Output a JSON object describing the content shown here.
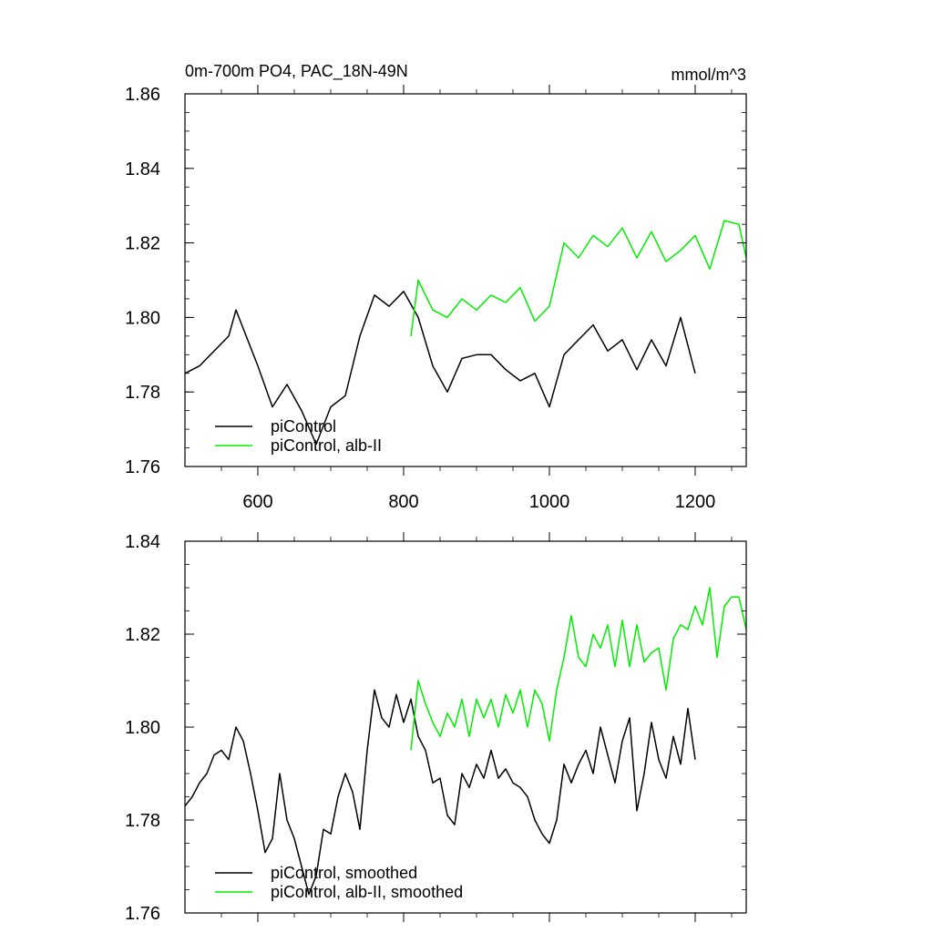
{
  "title": "0m-700m PO4, PAC_18N-49N",
  "units": "mmol/m^3",
  "colors": {
    "control": "#000000",
    "experiment": "#00ee00"
  },
  "chart_data": [
    {
      "type": "line",
      "xlim": [
        500,
        1270
      ],
      "ylim": [
        1.76,
        1.86
      ],
      "xticks": [
        600,
        800,
        1000,
        1200
      ],
      "xtick_labels": [
        "600",
        "800",
        "1000",
        "1200"
      ],
      "yticks": [
        1.76,
        1.78,
        1.8,
        1.82,
        1.84,
        1.86
      ],
      "ytick_labels": [
        "1.76",
        "1.78",
        "1.80",
        "1.82",
        "1.84",
        "1.86"
      ],
      "legend_position": "bottom-left",
      "series": [
        {
          "name": "piControl",
          "color": "#000000",
          "x": [
            500,
            520,
            540,
            560,
            570,
            580,
            600,
            620,
            640,
            660,
            680,
            700,
            720,
            740,
            760,
            780,
            800,
            820,
            840,
            860,
            880,
            900,
            920,
            940,
            960,
            980,
            1000,
            1020,
            1040,
            1060,
            1080,
            1100,
            1120,
            1140,
            1160,
            1180,
            1200
          ],
          "y": [
            1.785,
            1.787,
            1.791,
            1.795,
            1.802,
            1.797,
            1.787,
            1.776,
            1.782,
            1.775,
            1.766,
            1.776,
            1.779,
            1.795,
            1.806,
            1.803,
            1.807,
            1.8,
            1.787,
            1.78,
            1.789,
            1.79,
            1.79,
            1.786,
            1.783,
            1.785,
            1.776,
            1.79,
            1.794,
            1.798,
            1.791,
            1.794,
            1.786,
            1.794,
            1.787,
            1.8,
            1.785
          ]
        },
        {
          "name": "piControl, alb-II",
          "color": "#00ee00",
          "x": [
            810,
            820,
            840,
            860,
            880,
            900,
            920,
            940,
            960,
            980,
            1000,
            1020,
            1040,
            1060,
            1080,
            1100,
            1120,
            1140,
            1160,
            1180,
            1200,
            1220,
            1240,
            1260,
            1270
          ],
          "y": [
            1.795,
            1.81,
            1.802,
            1.8,
            1.805,
            1.802,
            1.806,
            1.804,
            1.808,
            1.799,
            1.803,
            1.82,
            1.816,
            1.822,
            1.819,
            1.824,
            1.816,
            1.823,
            1.815,
            1.818,
            1.822,
            1.813,
            1.826,
            1.825,
            1.816
          ]
        }
      ]
    },
    {
      "type": "line",
      "xlim": [
        500,
        1270
      ],
      "ylim": [
        1.76,
        1.84
      ],
      "xticks": [
        600,
        800,
        1000,
        1200
      ],
      "yticks": [
        1.76,
        1.78,
        1.8,
        1.82,
        1.84
      ],
      "ytick_labels": [
        "1.76",
        "1.78",
        "1.80",
        "1.82",
        "1.84"
      ],
      "legend_position": "bottom-left",
      "series": [
        {
          "name": "piControl, smoothed",
          "color": "#000000",
          "x": [
            500,
            510,
            520,
            530,
            540,
            550,
            560,
            570,
            580,
            590,
            600,
            610,
            620,
            630,
            640,
            650,
            660,
            670,
            680,
            690,
            700,
            710,
            720,
            730,
            740,
            750,
            760,
            770,
            780,
            790,
            800,
            810,
            820,
            830,
            840,
            850,
            860,
            870,
            880,
            890,
            900,
            910,
            920,
            930,
            940,
            950,
            960,
            970,
            980,
            990,
            1000,
            1010,
            1020,
            1030,
            1040,
            1050,
            1060,
            1070,
            1080,
            1090,
            1100,
            1110,
            1120,
            1130,
            1140,
            1150,
            1160,
            1170,
            1180,
            1190,
            1200
          ],
          "y": [
            1.783,
            1.785,
            1.788,
            1.79,
            1.794,
            1.795,
            1.793,
            1.8,
            1.797,
            1.79,
            1.782,
            1.773,
            1.776,
            1.79,
            1.78,
            1.776,
            1.77,
            1.764,
            1.768,
            1.778,
            1.777,
            1.785,
            1.79,
            1.786,
            1.778,
            1.795,
            1.808,
            1.802,
            1.8,
            1.807,
            1.801,
            1.806,
            1.798,
            1.795,
            1.788,
            1.789,
            1.781,
            1.779,
            1.79,
            1.787,
            1.792,
            1.789,
            1.795,
            1.789,
            1.791,
            1.788,
            1.787,
            1.785,
            1.78,
            1.777,
            1.775,
            1.78,
            1.792,
            1.788,
            1.792,
            1.795,
            1.79,
            1.8,
            1.794,
            1.788,
            1.797,
            1.802,
            1.782,
            1.79,
            1.801,
            1.793,
            1.789,
            1.798,
            1.792,
            1.804,
            1.793
          ]
        },
        {
          "name": "piControl, alb-II, smoothed",
          "color": "#00ee00",
          "x": [
            810,
            820,
            830,
            840,
            850,
            860,
            870,
            880,
            890,
            900,
            910,
            920,
            930,
            940,
            950,
            960,
            970,
            980,
            990,
            1000,
            1010,
            1020,
            1030,
            1040,
            1050,
            1060,
            1070,
            1080,
            1090,
            1100,
            1110,
            1120,
            1130,
            1140,
            1150,
            1160,
            1170,
            1180,
            1190,
            1200,
            1210,
            1220,
            1230,
            1240,
            1250,
            1260,
            1270
          ],
          "y": [
            1.795,
            1.81,
            1.805,
            1.801,
            1.798,
            1.803,
            1.8,
            1.806,
            1.798,
            1.806,
            1.802,
            1.806,
            1.8,
            1.807,
            1.803,
            1.808,
            1.8,
            1.808,
            1.805,
            1.797,
            1.808,
            1.815,
            1.824,
            1.815,
            1.813,
            1.82,
            1.817,
            1.822,
            1.813,
            1.823,
            1.813,
            1.822,
            1.814,
            1.816,
            1.817,
            1.808,
            1.819,
            1.822,
            1.821,
            1.826,
            1.822,
            1.83,
            1.815,
            1.826,
            1.828,
            1.828,
            1.821
          ]
        }
      ]
    }
  ]
}
